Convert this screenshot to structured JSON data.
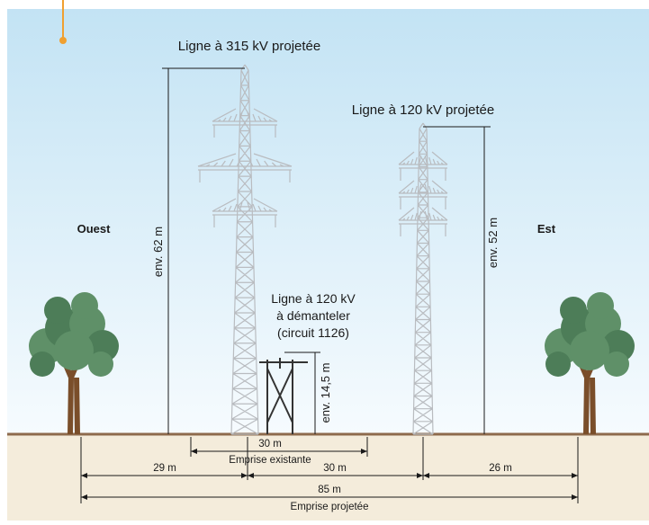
{
  "labels": {
    "line315": "Ligne à 315 kV projetée",
    "line120": "Ligne à 120 kV projetée",
    "west": "Ouest",
    "east": "Est",
    "h62": "env. 62 m",
    "h52": "env. 52 m",
    "old": [
      "Ligne à 120 kV",
      "à démanteler",
      "(circuit 1126)"
    ],
    "h14": "env. 14,5 m"
  },
  "dimensions": {
    "existing": {
      "value": "30 m",
      "label": "Emprise existante"
    },
    "d29": "29 m",
    "d30": "30 m",
    "d26": "26 m",
    "total": {
      "value": "85 m",
      "label": "Emprise projetée"
    }
  }
}
